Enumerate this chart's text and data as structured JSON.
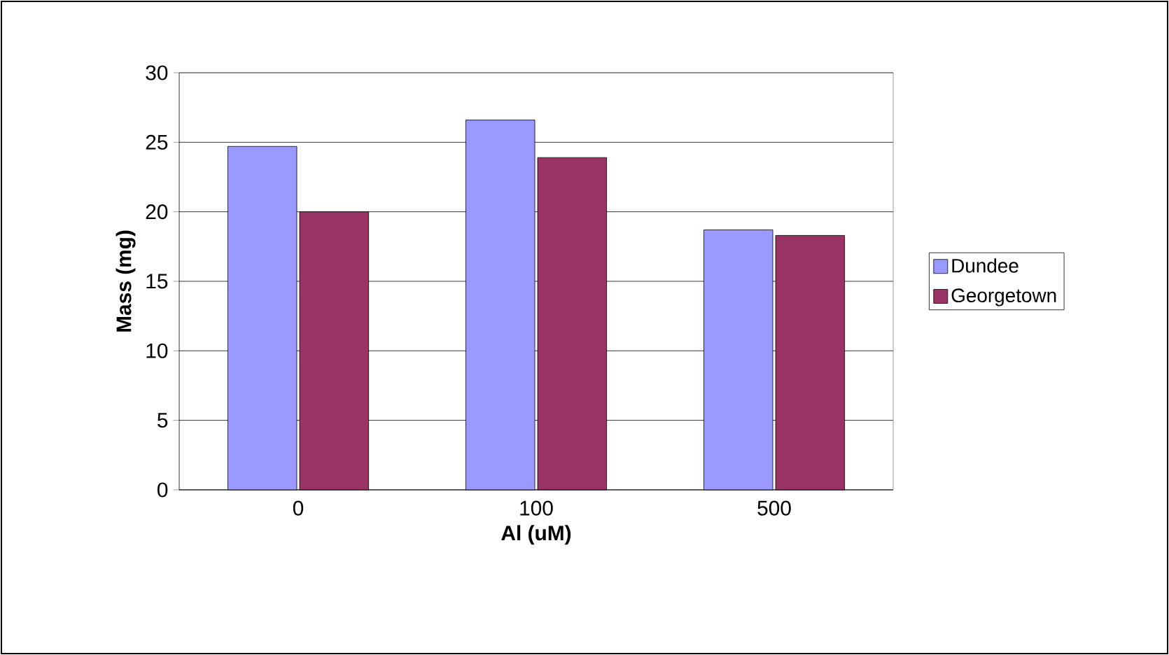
{
  "chart_data": {
    "type": "bar",
    "xlabel": "Al (uM)",
    "ylabel": "Mass (mg)",
    "categories": [
      "0",
      "100",
      "500"
    ],
    "series": [
      {
        "name": "Dundee",
        "color": "#9999ff",
        "values": [
          24.7,
          26.6,
          18.7
        ]
      },
      {
        "name": "Georgetown",
        "color": "#993366",
        "values": [
          20.0,
          23.9,
          18.3
        ]
      }
    ],
    "ylim": [
      0,
      30
    ],
    "yticks": [
      0,
      5,
      10,
      15,
      20,
      25,
      30
    ],
    "grid": "y",
    "legend": "right"
  }
}
